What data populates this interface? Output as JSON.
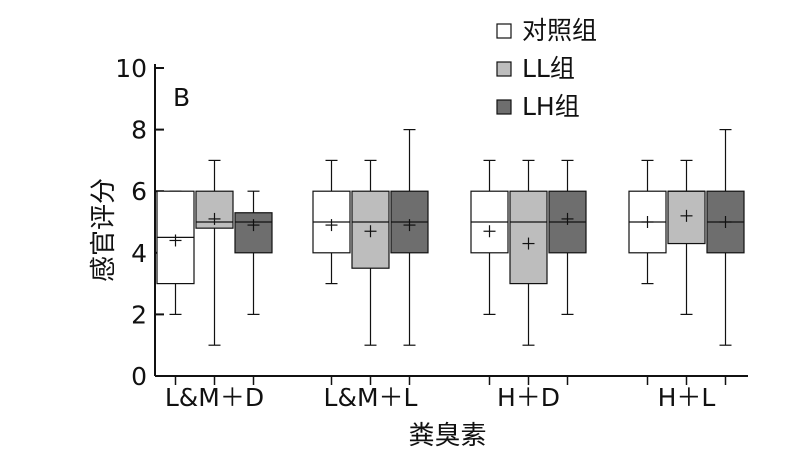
{
  "chart_data": {
    "type": "boxplot",
    "panel_label": "B",
    "xlabel": "粪臭素",
    "ylabel": "感官评分",
    "ylim": [
      0,
      10
    ],
    "yticks": [
      0,
      2,
      4,
      6,
      8,
      10
    ],
    "legend_position": "top-right",
    "categories": [
      "L&M＋D",
      "L&M＋L",
      "H＋D",
      "H＋L"
    ],
    "series": [
      {
        "name": "对照组",
        "color": "#ffffff",
        "boxes": [
          {
            "min": 2.0,
            "q1": 3.0,
            "median": 4.5,
            "q3": 6.0,
            "max": 6.0,
            "mean": 4.4
          },
          {
            "min": 3.0,
            "q1": 4.0,
            "median": 5.0,
            "q3": 6.0,
            "max": 7.0,
            "mean": 4.9
          },
          {
            "min": 2.0,
            "q1": 4.0,
            "median": 5.0,
            "q3": 6.0,
            "max": 7.0,
            "mean": 4.7
          },
          {
            "min": 3.0,
            "q1": 4.0,
            "median": 5.0,
            "q3": 6.0,
            "max": 7.0,
            "mean": 5.0
          }
        ]
      },
      {
        "name": "LL组",
        "color": "#bdbdbd",
        "boxes": [
          {
            "min": 1.0,
            "q1": 4.8,
            "median": 5.0,
            "q3": 6.0,
            "max": 7.0,
            "mean": 5.1
          },
          {
            "min": 1.0,
            "q1": 3.5,
            "median": 5.0,
            "q3": 6.0,
            "max": 7.0,
            "mean": 4.7
          },
          {
            "min": 1.0,
            "q1": 3.0,
            "median": 5.0,
            "q3": 6.0,
            "max": 7.0,
            "mean": 4.3
          },
          {
            "min": 2.0,
            "q1": 4.3,
            "median": 6.0,
            "q3": 6.0,
            "max": 7.0,
            "mean": 5.2
          }
        ]
      },
      {
        "name": "LH组",
        "color": "#6e6e6e",
        "boxes": [
          {
            "min": 2.0,
            "q1": 4.0,
            "median": 5.0,
            "q3": 5.3,
            "max": 6.0,
            "mean": 4.9
          },
          {
            "min": 1.0,
            "q1": 4.0,
            "median": 5.0,
            "q3": 6.0,
            "max": 8.0,
            "mean": 4.9
          },
          {
            "min": 2.0,
            "q1": 4.0,
            "median": 5.0,
            "q3": 6.0,
            "max": 7.0,
            "mean": 5.1
          },
          {
            "min": 1.0,
            "q1": 4.0,
            "median": 5.0,
            "q3": 6.0,
            "max": 8.0,
            "mean": 5.0
          }
        ]
      }
    ]
  }
}
